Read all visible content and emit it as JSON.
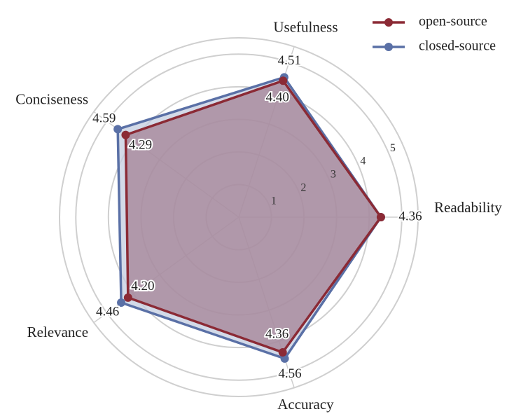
{
  "chart_data": {
    "type": "radar",
    "categories": [
      "Readability",
      "Usefulness",
      "Conciseness",
      "Relevance",
      "Accuracy"
    ],
    "series": [
      {
        "name": "open-source",
        "color": "#8b2a35",
        "fill": "#9a6d80",
        "values": [
          4.36,
          4.4,
          4.29,
          4.2,
          4.36
        ],
        "value_labels": [
          null,
          "4.40",
          "4.29",
          "4.20",
          "4.36"
        ]
      },
      {
        "name": "closed-source",
        "color": "#5a70a6",
        "fill": "#c4cde0",
        "values": [
          4.36,
          4.51,
          4.59,
          4.46,
          4.56
        ],
        "value_labels": [
          "4.36",
          "4.51",
          "4.59",
          "4.46",
          "4.56"
        ]
      }
    ],
    "rlim": [
      0,
      5.5
    ],
    "rticks": [
      1,
      2,
      3,
      4,
      5
    ],
    "grid": true,
    "legend": "upper right"
  }
}
